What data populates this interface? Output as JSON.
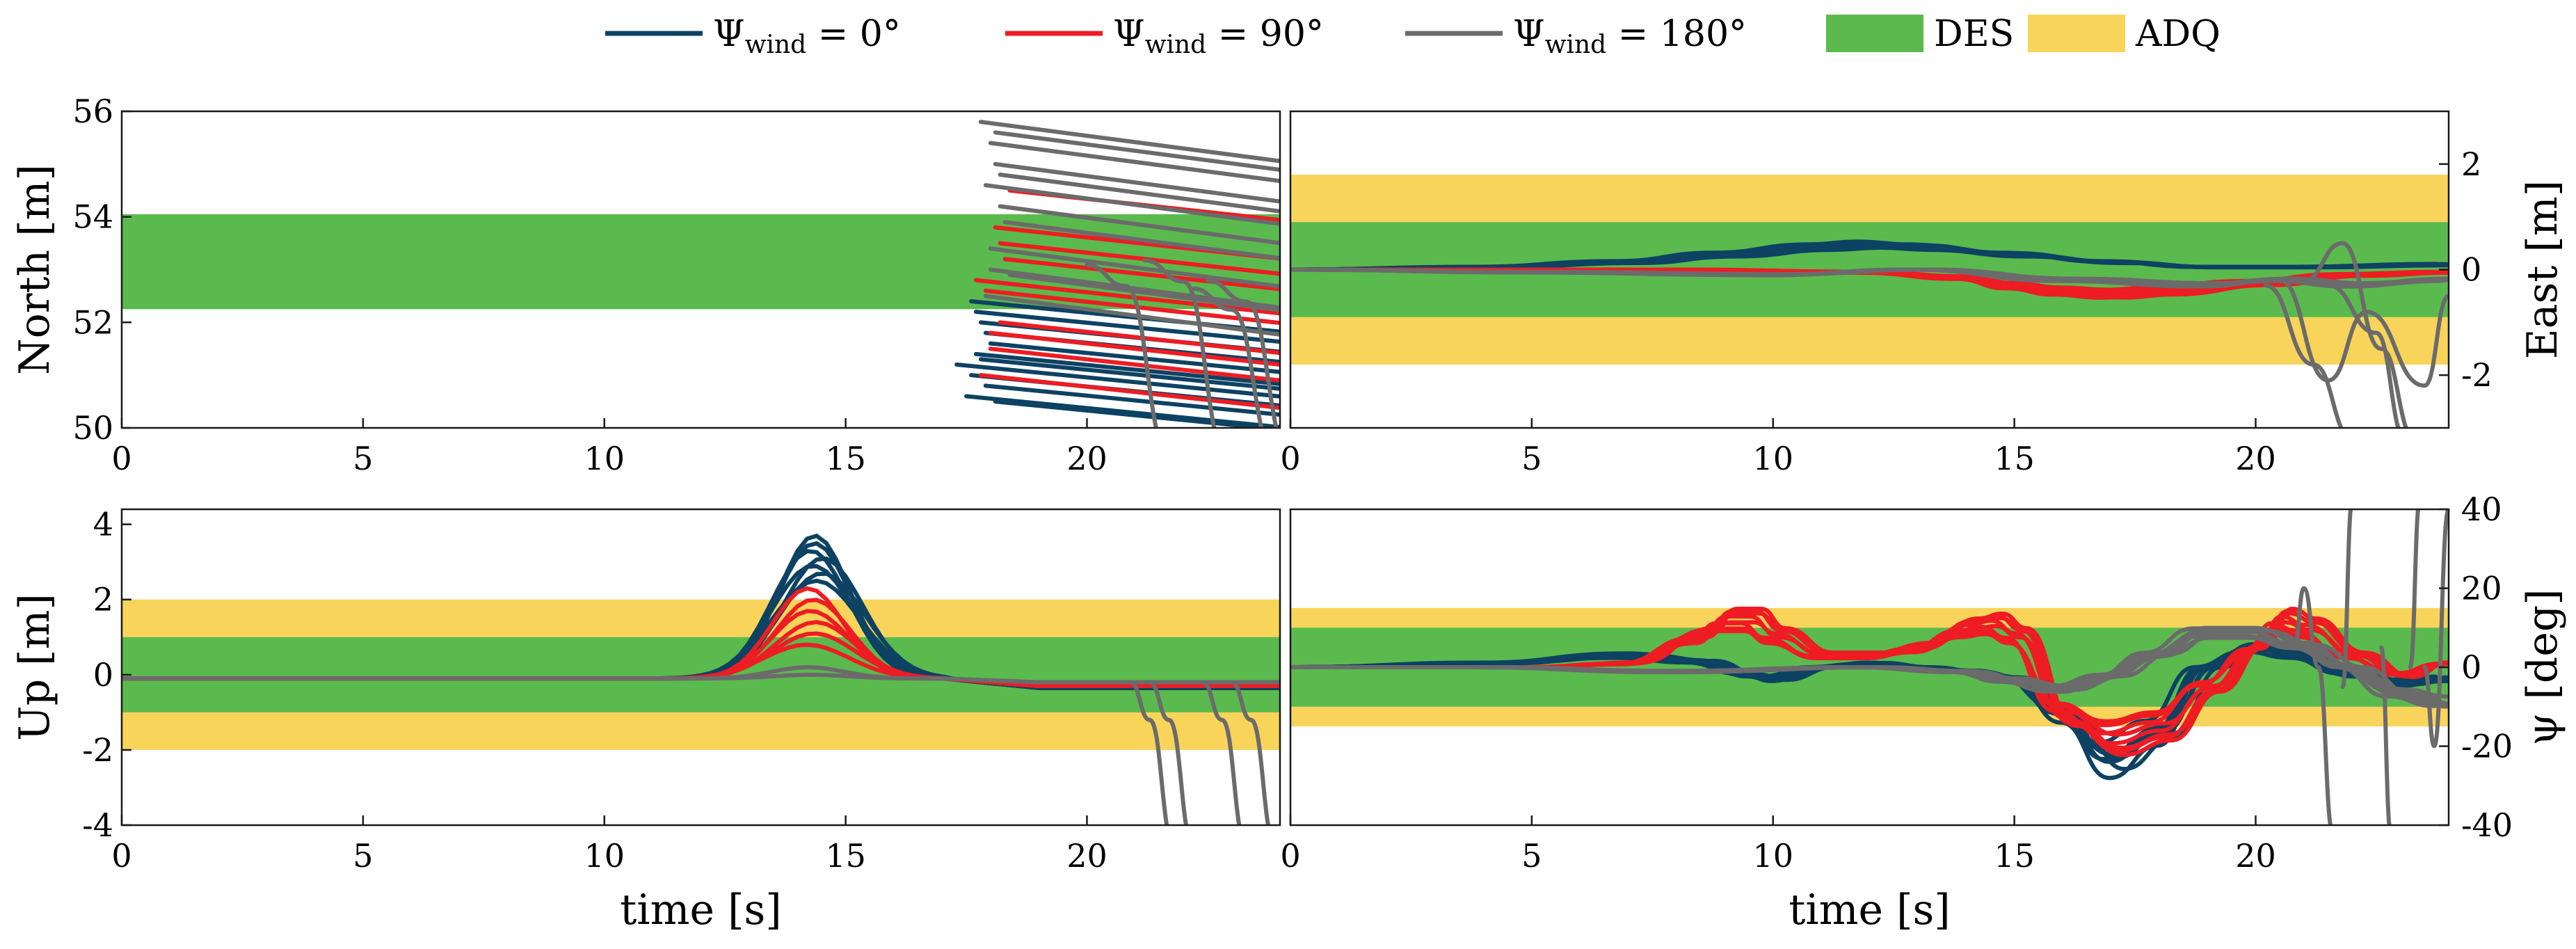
{
  "legend": [
    {
      "kind": "line",
      "label_base": "Ψ",
      "label_sub": "wind",
      "label_rest": " = 0°",
      "color": "#0d4263"
    },
    {
      "kind": "line",
      "label_base": "Ψ",
      "label_sub": "wind",
      "label_rest": " = 90°",
      "color": "#ee1c23"
    },
    {
      "kind": "line",
      "label_base": "Ψ",
      "label_sub": "wind",
      "label_rest": " = 180°",
      "color": "#6b6b6b"
    },
    {
      "kind": "patch",
      "label": "DES",
      "color": "#5aba4d"
    },
    {
      "kind": "patch",
      "label": "ADQ",
      "color": "#f8d45a"
    }
  ],
  "colors": {
    "wind_0": "#0d4263",
    "wind_90": "#ee1c23",
    "wind_180": "#6b6b6b",
    "des": "#5aba4d",
    "adq": "#f8d45a"
  },
  "chart_data": [
    {
      "id": "north",
      "type": "line",
      "ylabel": "North [m]",
      "xlabel": "",
      "yaxis_side": "left",
      "xlim": [
        0,
        24
      ],
      "ylim": [
        50,
        56
      ],
      "xticks": [
        0,
        5,
        10,
        15,
        20
      ],
      "yticks": [
        50,
        52,
        54,
        56
      ],
      "bands": [
        {
          "name": "DES",
          "range": [
            52.25,
            54.05
          ]
        }
      ],
      "series": [
        {
          "name": "Ψwind = 0°",
          "group": "wind_0",
          "description": "near-horizontal segments starting at t≈17.2–18, slowly descending",
          "start_t": [
            17.3,
            17.5,
            17.6,
            17.7,
            17.8,
            17.9,
            18.0,
            17.6,
            17.9,
            18.1,
            17.7,
            17.8
          ],
          "start_y": [
            51.2,
            50.6,
            51.0,
            51.4,
            52.0,
            50.8,
            51.6,
            52.4,
            51.8,
            50.5,
            52.2,
            51.3
          ],
          "slope": -0.09
        },
        {
          "name": "Ψwind = 90°",
          "group": "wind_90",
          "description": "segments starting at t≈17.5–18.5, descending",
          "start_t": [
            17.8,
            18.0,
            18.2,
            17.9,
            18.3,
            18.1,
            18.4,
            17.7,
            18.0,
            18.2
          ],
          "start_y": [
            51.0,
            51.5,
            52.0,
            52.6,
            53.2,
            53.8,
            54.5,
            52.8,
            51.8,
            53.5
          ],
          "slope": -0.1
        },
        {
          "name": "Ψwind = 180°",
          "group": "wind_180",
          "description": "segments starting at t≈17.5–18.5 from 52.5–55.8, several diverge downward after t≈21",
          "start_t": [
            17.8,
            18.0,
            18.1,
            17.9,
            18.2,
            18.3,
            18.0,
            18.4,
            17.9,
            18.1,
            18.2,
            18.0
          ],
          "start_y": [
            55.8,
            55.4,
            55.0,
            54.6,
            54.2,
            53.9,
            53.4,
            52.9,
            52.5,
            55.6,
            54.8,
            53.0
          ],
          "slope": -0.12,
          "diverging": [
            {
              "t0": 20.8,
              "y_end": 49.5
            },
            {
              "t0": 22.0,
              "y_end": 49.5
            },
            {
              "t0": 23.0,
              "y_end": 49.5
            },
            {
              "t0": 23.3,
              "y_end": 49.5
            }
          ]
        }
      ]
    },
    {
      "id": "east",
      "type": "line",
      "ylabel": "East [m]",
      "xlabel": "",
      "yaxis_side": "right",
      "xlim": [
        0,
        24
      ],
      "ylim": [
        -3,
        3
      ],
      "xticks": [
        0,
        5,
        10,
        15,
        20
      ],
      "yticks": [
        -2,
        0,
        2
      ],
      "bands": [
        {
          "name": "ADQ",
          "range": [
            -1.8,
            1.8
          ]
        },
        {
          "name": "DES",
          "range": [
            -0.9,
            0.9
          ]
        }
      ],
      "series": [
        {
          "name": "Ψwind = 0°",
          "group": "wind_0",
          "x": [
            0,
            4,
            7,
            9,
            11,
            12,
            13,
            15,
            17,
            19,
            21,
            24
          ],
          "y": [
            0,
            0.05,
            0.15,
            0.3,
            0.45,
            0.5,
            0.45,
            0.3,
            0.15,
            0.05,
            0.05,
            0.1
          ]
        },
        {
          "name": "Ψwind = 90°",
          "group": "wind_90",
          "x": [
            0,
            8,
            12,
            14,
            15,
            16,
            17,
            18,
            20,
            22,
            24
          ],
          "y": [
            0,
            0,
            -0.05,
            -0.15,
            -0.3,
            -0.4,
            -0.45,
            -0.4,
            -0.25,
            -0.1,
            -0.05
          ]
        },
        {
          "name": "Ψwind = 180°",
          "group": "wind_180",
          "x": [
            0,
            5,
            10,
            13,
            16,
            19,
            20.5,
            22,
            24
          ],
          "y": [
            0,
            -0.05,
            -0.1,
            0,
            -0.2,
            -0.3,
            -0.2,
            -0.3,
            -0.2
          ],
          "diverging": [
            {
              "x": [
                20.2,
                21.2,
                22.0,
                22.8
              ],
              "y": [
                -0.3,
                -1.8,
                -3.2,
                -3.2
              ]
            },
            {
              "x": [
                20.5,
                21.5,
                22.3,
                23.5,
                24
              ],
              "y": [
                -0.2,
                -2.1,
                -0.8,
                -2.2,
                -0.5
              ]
            },
            {
              "x": [
                21.0,
                21.8,
                22.6,
                23.3
              ],
              "y": [
                -0.2,
                0.5,
                -1.5,
                -3.2
              ]
            },
            {
              "x": [
                21.5,
                22.5,
                23.1
              ],
              "y": [
                -0.3,
                -1.2,
                -3.2
              ]
            }
          ]
        }
      ]
    },
    {
      "id": "up",
      "type": "line",
      "ylabel": "Up [m]",
      "xlabel": "time [s]",
      "yaxis_side": "left",
      "xlim": [
        0,
        24
      ],
      "ylim": [
        -4,
        4.4
      ],
      "xticks": [
        0,
        5,
        10,
        15,
        20
      ],
      "yticks": [
        -4,
        -2,
        0,
        2,
        4
      ],
      "bands": [
        {
          "name": "ADQ",
          "range": [
            -2,
            2
          ]
        },
        {
          "name": "DES",
          "range": [
            -1,
            1
          ]
        }
      ],
      "series": [
        {
          "name": "Ψwind = 0°",
          "group": "wind_0",
          "description": "bump peaking ~3.8 at t≈14.5",
          "peak_t": 14.5,
          "peak_values": [
            3.8,
            3.6,
            3.4,
            3.2,
            3.0,
            2.8,
            2.6
          ],
          "baseline": -0.1,
          "tail": -0.35
        },
        {
          "name": "Ψwind = 90°",
          "group": "wind_90",
          "description": "bump peaking ~2.4 at t≈14.4",
          "peak_t": 14.4,
          "peak_values": [
            2.4,
            2.1,
            1.8,
            1.5,
            1.2,
            0.9
          ],
          "baseline": -0.1,
          "tail": -0.3
        },
        {
          "name": "Ψwind = 180°",
          "group": "wind_180",
          "description": "flat near zero, several diverge downward after t≈21.5",
          "peak_t": 14.4,
          "peak_values": [
            0.3,
            0.1
          ],
          "baseline": -0.1,
          "tail": -0.2,
          "diverging": [
            {
              "t0": 21.3,
              "y_end": -4.5
            },
            {
              "t0": 21.7,
              "y_end": -4.5
            },
            {
              "t0": 22.8,
              "y_end": -4.5
            },
            {
              "t0": 23.4,
              "y_end": -4.5
            }
          ]
        }
      ]
    },
    {
      "id": "psi",
      "type": "line",
      "ylabel": "ψ [deg]",
      "xlabel": "time [s]",
      "yaxis_side": "right",
      "xlim": [
        0,
        24
      ],
      "ylim": [
        -40,
        40
      ],
      "xticks": [
        0,
        5,
        10,
        15,
        20
      ],
      "yticks": [
        -40,
        -20,
        0,
        20,
        40
      ],
      "bands": [
        {
          "name": "ADQ",
          "range": [
            -15,
            15
          ]
        },
        {
          "name": "DES",
          "range": [
            -10,
            10
          ]
        }
      ],
      "series": [
        {
          "name": "Ψwind = 0°",
          "group": "wind_0",
          "x": [
            0,
            4,
            7,
            8.5,
            9.5,
            10,
            11,
            12,
            13,
            14,
            15,
            16,
            17,
            18,
            19,
            20,
            21,
            22,
            23,
            24
          ],
          "y": [
            0,
            1,
            3,
            1.5,
            -2,
            -3,
            0,
            1,
            0,
            -1,
            -3,
            -12,
            -24,
            -17,
            0,
            5,
            3,
            -2,
            -4,
            -3
          ]
        },
        {
          "name": "Ψwind = 90°",
          "group": "wind_90",
          "x": [
            0,
            5,
            7,
            8.5,
            9,
            9.5,
            10,
            11,
            12,
            13,
            14,
            14.5,
            15,
            16,
            17,
            18,
            19,
            20,
            20.5,
            21,
            22,
            23,
            24
          ],
          "y": [
            0,
            0,
            1,
            8,
            12,
            12,
            8,
            3,
            3,
            5,
            10,
            11,
            8,
            -12,
            -18,
            -15,
            -5,
            5,
            12,
            10,
            3,
            -2,
            1
          ]
        },
        {
          "name": "Ψwind = 180°",
          "group": "wind_180",
          "x": [
            0,
            4,
            8,
            12,
            14,
            15,
            16,
            17,
            18,
            19,
            20,
            21,
            22,
            23,
            24
          ],
          "y": [
            0,
            0,
            -1,
            0,
            -1,
            -3,
            -5,
            -2,
            3,
            8,
            8,
            5,
            0,
            -6,
            -8
          ],
          "diverging": [
            {
              "x": [
                20.8,
                21.0,
                21.3,
                21.6
              ],
              "y": [
                5,
                20,
                0,
                -42
              ]
            },
            {
              "x": [
                21.8,
                22.0,
                22.2
              ],
              "y": [
                -5,
                42,
                42
              ]
            },
            {
              "x": [
                22.6,
                22.8,
                23.0
              ],
              "y": [
                5,
                -42,
                -42
              ]
            },
            {
              "x": [
                23.2,
                23.4,
                23.6
              ],
              "y": [
                0,
                42,
                42
              ]
            },
            {
              "x": [
                23.5,
                23.7,
                24.0
              ],
              "y": [
                0,
                -20,
                40
              ]
            }
          ]
        }
      ]
    }
  ]
}
